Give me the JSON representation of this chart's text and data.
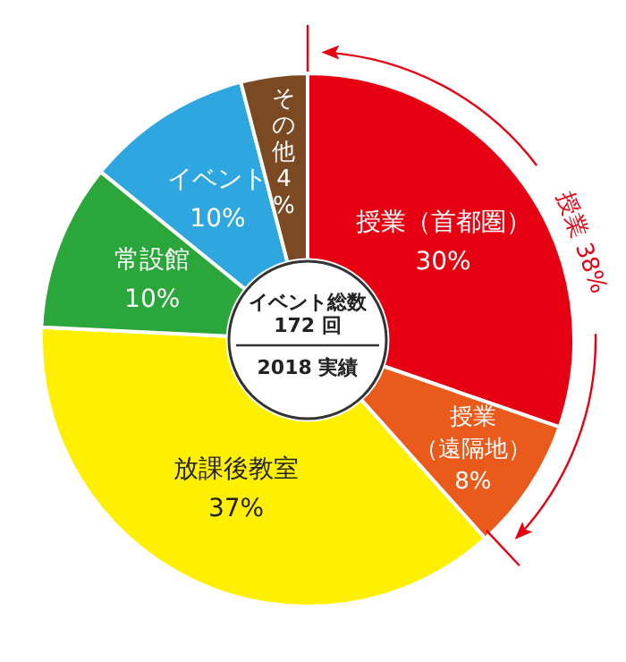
{
  "chart_data": {
    "type": "donut",
    "categories": [
      "授業（首都圏）",
      "授業（遠隔地）",
      "放課後教室",
      "常設館",
      "イベント",
      "その他"
    ],
    "values": [
      30,
      8,
      37,
      10,
      10,
      4
    ],
    "value_labels": [
      "30%",
      "8%",
      "37%",
      "10%",
      "10%",
      "4%"
    ],
    "colors": [
      "#e60012",
      "#ea5a1a",
      "#fff000",
      "#2aa63a",
      "#2ea7e0",
      "#7b4a22"
    ],
    "legend": false,
    "annotations": [
      "イベント総数\n172 回",
      "2018 実績",
      "授業 38%"
    ]
  }
}
